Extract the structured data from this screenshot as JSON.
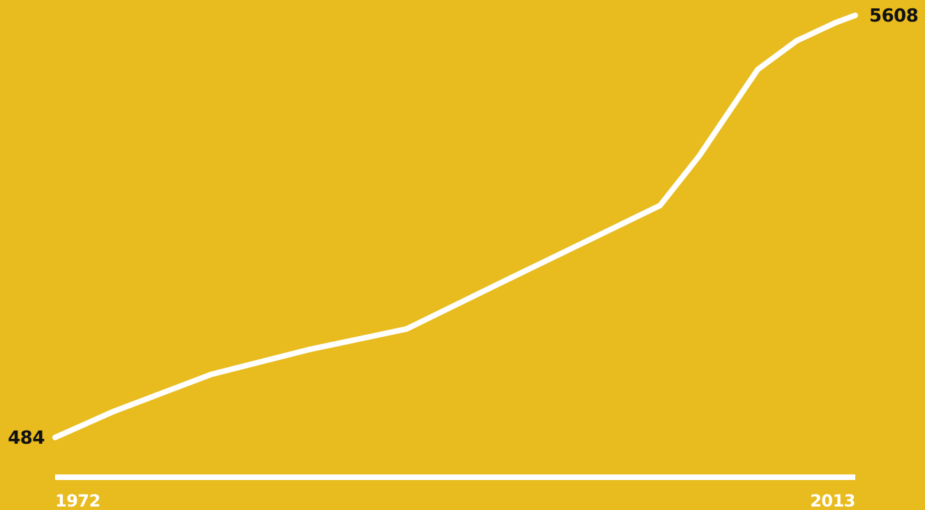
{
  "colors": {
    "background": "#E8BB1E",
    "line": "#FFFFFF",
    "axis": "#FFFFFF",
    "value_label": "#111111",
    "tick_label": "#FFFFFF"
  },
  "chart_data": {
    "type": "line",
    "title": "",
    "xlabel": "",
    "ylabel": "",
    "grid": false,
    "legend": "none",
    "xlim": [
      1972,
      2013
    ],
    "ylim": [
      0,
      6000
    ],
    "x_tick_labels": [
      "1972",
      "2013"
    ],
    "start_label": "484",
    "end_label": "5608",
    "series": [
      {
        "x": [
          1972,
          1975,
          1980,
          1985,
          1990,
          1995,
          2003,
          2005,
          2006,
          2007,
          2008,
          2010,
          2012,
          2013
        ],
        "y": [
          484,
          800,
          1250,
          1550,
          1800,
          2380,
          3300,
          3900,
          4250,
          4600,
          4950,
          5300,
          5520,
          5608
        ]
      }
    ]
  }
}
